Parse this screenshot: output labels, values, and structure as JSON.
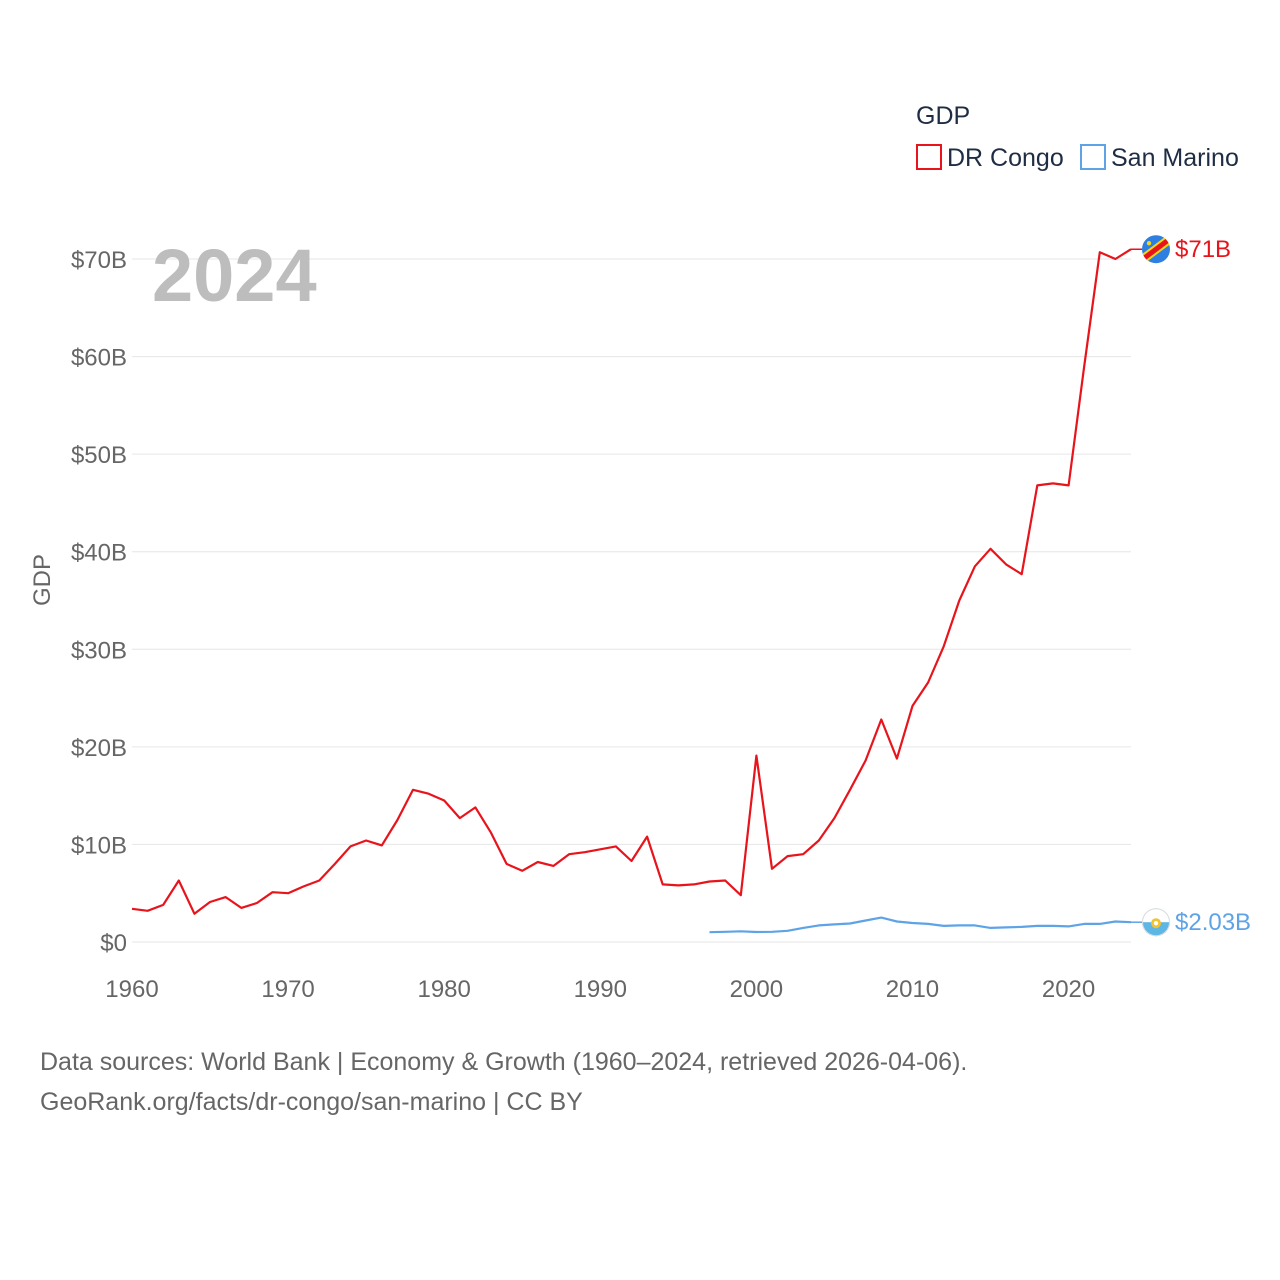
{
  "chart_data": {
    "type": "line",
    "ylabel": "GDP",
    "legend_title": "GDP",
    "year_label": "2024",
    "xlim": [
      1960,
      2024
    ],
    "ylim": [
      0,
      71
    ],
    "y_ticks": [
      0,
      10,
      20,
      30,
      40,
      50,
      60,
      70
    ],
    "y_tick_labels": [
      "$0",
      "$10B",
      "$20B",
      "$30B",
      "$40B",
      "$50B",
      "$60B",
      "$70B"
    ],
    "x_ticks": [
      1960,
      1970,
      1980,
      1990,
      2000,
      2010,
      2020
    ],
    "x_tick_labels": [
      "1960",
      "1970",
      "1980",
      "1990",
      "2000",
      "2010",
      "2020"
    ],
    "series": [
      {
        "name": "DR Congo",
        "color": "#e8141c",
        "end_label": "$71B",
        "flag_icon": "dr-congo-flag-icon",
        "start_year": 1960,
        "values": [
          3.4,
          3.2,
          3.8,
          6.3,
          2.9,
          4.1,
          4.6,
          3.5,
          4.0,
          5.1,
          5.0,
          5.7,
          6.3,
          8.0,
          9.8,
          10.4,
          9.9,
          12.5,
          15.6,
          15.2,
          14.5,
          12.7,
          13.8,
          11.2,
          8.0,
          7.3,
          8.2,
          7.8,
          9.0,
          9.2,
          9.5,
          9.8,
          8.3,
          10.8,
          5.9,
          5.8,
          5.9,
          6.2,
          6.3,
          4.8,
          19.1,
          7.5,
          8.8,
          9.0,
          10.4,
          12.7,
          15.6,
          18.6,
          22.8,
          18.8,
          24.2,
          26.6,
          30.3,
          35.0,
          38.5,
          40.3,
          38.7,
          37.7,
          46.8,
          47.0,
          46.8,
          59.0,
          70.7,
          70.0,
          71.0
        ]
      },
      {
        "name": "San Marino",
        "color": "#5ea3e6",
        "end_label": "$2.03B",
        "flag_icon": "san-marino-flag-icon",
        "start_year": 1997,
        "values": [
          1.0,
          1.05,
          1.1,
          1.02,
          1.05,
          1.15,
          1.45,
          1.7,
          1.8,
          1.9,
          2.2,
          2.5,
          2.1,
          1.95,
          1.85,
          1.65,
          1.7,
          1.7,
          1.45,
          1.5,
          1.55,
          1.65,
          1.65,
          1.6,
          1.85,
          1.85,
          2.1,
          2.03
        ]
      }
    ]
  },
  "footer": {
    "line1": "Data sources: World Bank | Economy & Growth (1960–2024, retrieved 2026-04-06).",
    "line2": "GeoRank.org/facts/dr-congo/san-marino | CC BY"
  }
}
